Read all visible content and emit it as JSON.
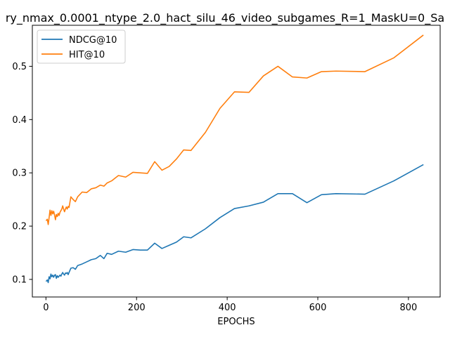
{
  "chart_data": {
    "type": "line",
    "title": "ry_nmax_0.0001_ntype_2.0_hact_silu_46_video_subgames_R=1_MaskU=0_Sa",
    "xlabel": "EPOCHS",
    "ylabel": "",
    "xlim": [
      -30,
      870
    ],
    "ylim": [
      0.067,
      0.577
    ],
    "xticks": [
      0,
      200,
      400,
      600,
      800
    ],
    "yticks": [
      0.1,
      0.2,
      0.3,
      0.4,
      0.5
    ],
    "grid": false,
    "legend_position": "top-left",
    "series": [
      {
        "name": "NDCG@10",
        "color": "#1f77b4",
        "x": [
          1,
          3,
          5,
          7,
          9,
          11,
          13,
          15,
          17,
          19,
          21,
          23,
          25,
          27,
          29,
          31,
          33,
          35,
          37,
          39,
          41,
          43,
          45,
          47,
          49,
          51,
          55,
          60,
          65,
          70,
          80,
          90,
          100,
          110,
          120,
          128,
          135,
          145,
          160,
          176,
          192,
          208,
          224,
          240,
          256,
          272,
          288,
          304,
          320,
          352,
          384,
          416,
          448,
          480,
          512,
          544,
          576,
          608,
          640,
          704,
          768,
          832
        ],
        "y": [
          0.097,
          0.099,
          0.094,
          0.105,
          0.101,
          0.11,
          0.105,
          0.108,
          0.104,
          0.108,
          0.109,
          0.102,
          0.107,
          0.104,
          0.106,
          0.108,
          0.106,
          0.11,
          0.113,
          0.11,
          0.108,
          0.112,
          0.111,
          0.113,
          0.109,
          0.113,
          0.121,
          0.122,
          0.119,
          0.126,
          0.129,
          0.133,
          0.137,
          0.139,
          0.145,
          0.139,
          0.149,
          0.147,
          0.153,
          0.151,
          0.156,
          0.155,
          0.155,
          0.168,
          0.158,
          0.164,
          0.17,
          0.18,
          0.178,
          0.195,
          0.216,
          0.233,
          0.238,
          0.245,
          0.261,
          0.261,
          0.244,
          0.259,
          0.261,
          0.26,
          0.285,
          0.315
        ]
      },
      {
        "name": "HIT@10",
        "color": "#ff7f0e",
        "x": [
          1,
          3,
          5,
          7,
          9,
          11,
          13,
          15,
          17,
          19,
          21,
          23,
          25,
          27,
          29,
          31,
          33,
          35,
          37,
          39,
          41,
          43,
          45,
          47,
          49,
          51,
          55,
          60,
          65,
          70,
          80,
          90,
          100,
          110,
          120,
          128,
          135,
          145,
          160,
          176,
          192,
          208,
          224,
          240,
          256,
          272,
          288,
          304,
          320,
          352,
          384,
          416,
          448,
          480,
          512,
          544,
          576,
          608,
          640,
          704,
          768,
          832
        ],
        "y": [
          0.211,
          0.213,
          0.203,
          0.216,
          0.23,
          0.22,
          0.229,
          0.223,
          0.228,
          0.221,
          0.212,
          0.222,
          0.218,
          0.224,
          0.22,
          0.226,
          0.229,
          0.232,
          0.238,
          0.232,
          0.227,
          0.232,
          0.236,
          0.232,
          0.237,
          0.235,
          0.255,
          0.25,
          0.246,
          0.255,
          0.264,
          0.263,
          0.27,
          0.272,
          0.277,
          0.275,
          0.281,
          0.285,
          0.295,
          0.292,
          0.301,
          0.3,
          0.299,
          0.321,
          0.305,
          0.312,
          0.326,
          0.343,
          0.342,
          0.376,
          0.421,
          0.452,
          0.451,
          0.482,
          0.5,
          0.48,
          0.478,
          0.49,
          0.491,
          0.49,
          0.516,
          0.558
        ]
      }
    ]
  }
}
